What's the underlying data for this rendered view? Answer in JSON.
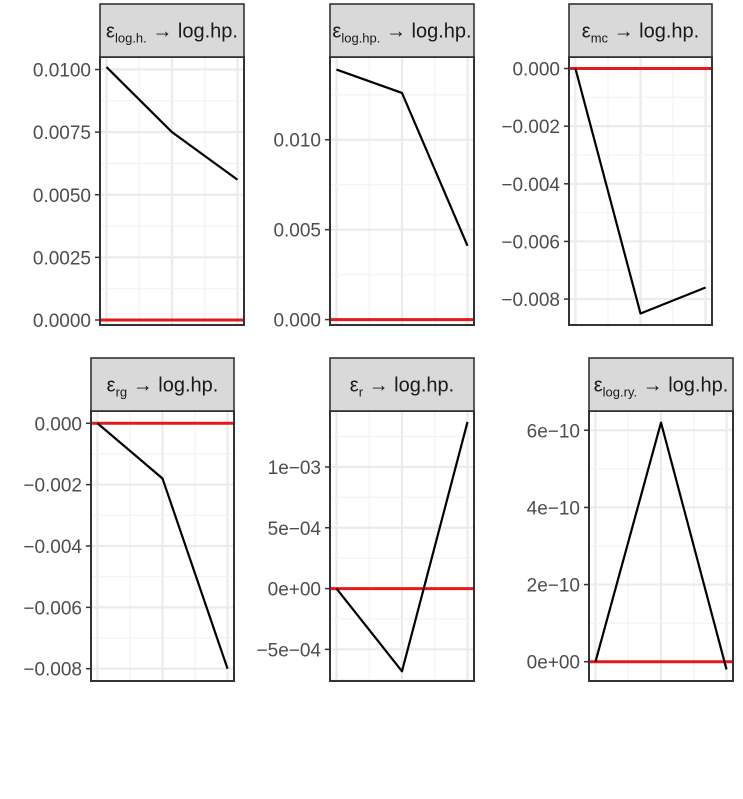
{
  "chart_data": [
    {
      "type": "line",
      "strip": {
        "symbol": "ε",
        "sub": "log.h.",
        "arrow": "→",
        "target": "log.hp."
      },
      "x": [
        1,
        2,
        3
      ],
      "series": [
        {
          "values": [
            0.0101,
            0.0075,
            0.0056
          ]
        }
      ],
      "reference_line": {
        "y": 0,
        "color": "#e31a1c"
      },
      "yticks": [
        0,
        0.0025,
        0.005,
        0.0075,
        0.01
      ],
      "ytick_labels": [
        "0.0000",
        "0.0025",
        "0.0050",
        "0.0075",
        "0.0100"
      ],
      "ylim": [
        -0.0002,
        0.0105
      ],
      "grid": true
    },
    {
      "type": "line",
      "strip": {
        "symbol": "ε",
        "sub": "log.hp.",
        "arrow": "→",
        "target": "log.hp."
      },
      "x": [
        1,
        2,
        3
      ],
      "series": [
        {
          "values": [
            0.0139,
            0.0126,
            0.0041
          ]
        }
      ],
      "reference_line": {
        "y": 0,
        "color": "#e31a1c"
      },
      "yticks": [
        0,
        0.005,
        0.01
      ],
      "ytick_labels": [
        "0.000",
        "0.005",
        "0.010"
      ],
      "ylim": [
        -0.0003,
        0.0146
      ],
      "grid": true
    },
    {
      "type": "line",
      "strip": {
        "symbol": "ε",
        "sub": "mc",
        "arrow": "→",
        "target": "log.hp."
      },
      "x": [
        1,
        2,
        3
      ],
      "series": [
        {
          "values": [
            0.0,
            -0.0085,
            -0.0076
          ]
        }
      ],
      "reference_line": {
        "y": 0,
        "color": "#e31a1c"
      },
      "yticks": [
        -0.008,
        -0.006,
        -0.004,
        -0.002,
        0
      ],
      "ytick_labels": [
        "−0.008",
        "−0.006",
        "−0.004",
        "−0.002",
        "0.000"
      ],
      "ylim": [
        -0.0089,
        0.0004
      ],
      "grid": true
    },
    {
      "type": "line",
      "strip": {
        "symbol": "ε",
        "sub": "rg",
        "arrow": "→",
        "target": "log.hp."
      },
      "x": [
        1,
        2,
        3
      ],
      "series": [
        {
          "values": [
            0.0,
            -0.0018,
            -0.008
          ]
        }
      ],
      "reference_line": {
        "y": 0,
        "color": "#e31a1c"
      },
      "yticks": [
        -0.008,
        -0.006,
        -0.004,
        -0.002,
        0
      ],
      "ytick_labels": [
        "−0.008",
        "−0.006",
        "−0.004",
        "−0.002",
        "0.000"
      ],
      "ylim": [
        -0.0084,
        0.0004
      ],
      "grid": true
    },
    {
      "type": "line",
      "strip": {
        "symbol": "ε",
        "sub": "r",
        "arrow": "→",
        "target": "log.hp."
      },
      "x": [
        1,
        2,
        3
      ],
      "series": [
        {
          "values": [
            0.0,
            -0.00068,
            0.00137
          ]
        }
      ],
      "reference_line": {
        "y": 0,
        "color": "#e31a1c"
      },
      "yticks": [
        -0.0005,
        0,
        0.0005,
        0.001
      ],
      "ytick_labels": [
        "−5e−04",
        "0e+00",
        "5e−04",
        "1e−03"
      ],
      "ylim": [
        -0.00076,
        0.00146
      ],
      "grid": true
    },
    {
      "type": "line",
      "strip": {
        "symbol": "ε",
        "sub": "log.ry.",
        "arrow": "→",
        "target": "log.hp."
      },
      "x": [
        1,
        2,
        3
      ],
      "series": [
        {
          "values": [
            0.0,
            6.2e-10,
            -2e-11
          ]
        }
      ],
      "reference_line": {
        "y": 0,
        "color": "#e31a1c"
      },
      "yticks": [
        0,
        2e-10,
        4e-10,
        6e-10
      ],
      "ytick_labels": [
        "0e+00",
        "2e−10",
        "4e−10",
        "6e−10"
      ],
      "ylim": [
        -5e-11,
        6.5e-10
      ],
      "grid": true
    }
  ]
}
